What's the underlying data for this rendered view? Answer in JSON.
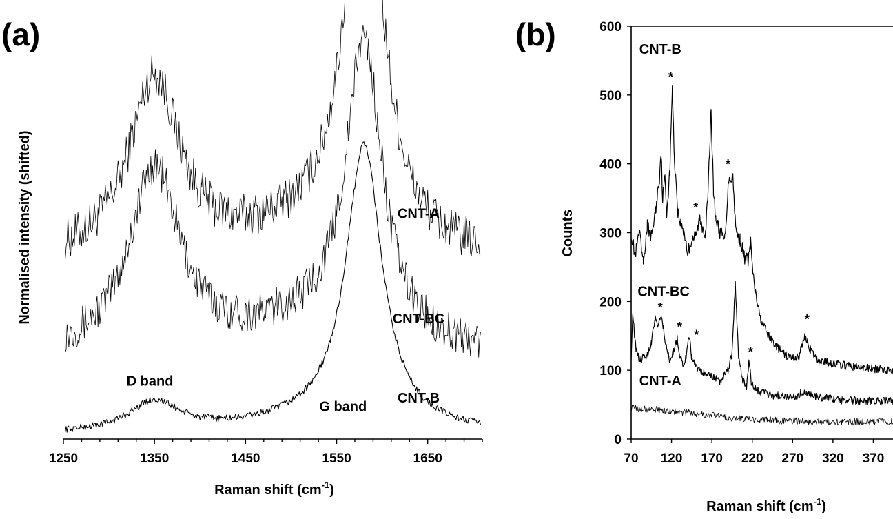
{
  "chart_data": [
    {
      "panel": "(a)",
      "type": "line",
      "xlabel": "Raman shift (cm",
      "xlabel_sup": "-1",
      "xlabel_tail": ")",
      "ylabel": "Normalised intensity (shifted)",
      "xlim": [
        1250,
        1710
      ],
      "ylim": [
        0,
        1.0
      ],
      "xticks": [
        1250,
        1350,
        1450,
        1550,
        1650
      ],
      "yticks_shown": false,
      "annotations": [
        {
          "text": "D band",
          "x": 1345,
          "y": 0.125
        },
        {
          "text": "G band",
          "x": 1557,
          "y": 0.065
        }
      ],
      "series": [
        {
          "name": "CNT-A",
          "label_x": 1640,
          "label_y": 0.515,
          "offset": 0.38,
          "peakD": 0.42,
          "peakG": 0.99,
          "base": 0.03,
          "noise": 0.05
        },
        {
          "name": "CNT-BC",
          "label_x": 1640,
          "label_y": 0.27,
          "offset": 0.16,
          "peakD": 0.43,
          "peakG": 0.7,
          "base": 0.03,
          "noise": 0.045
        },
        {
          "name": "CNT-B",
          "label_x": 1640,
          "label_y": 0.085,
          "offset": 0.0,
          "peakD": 0.07,
          "peakG": 0.66,
          "base": 0.01,
          "noise": 0.008
        }
      ]
    },
    {
      "panel": "(b)",
      "type": "line",
      "xlabel": "Raman shift (cm",
      "xlabel_sup": "-1",
      "xlabel_tail": ")",
      "ylabel": "Counts",
      "xlim": [
        70,
        420
      ],
      "ylim": [
        0,
        600
      ],
      "xticks": [
        70,
        120,
        170,
        220,
        270,
        320,
        370
      ],
      "yticks": [
        0,
        100,
        200,
        300,
        400,
        500,
        600
      ],
      "series": [
        {
          "name": "CNT-B",
          "label_x": 80,
          "label_y": 560,
          "points": [
            [
              70,
              300
            ],
            [
              75,
              265
            ],
            [
              80,
              300
            ],
            [
              85,
              255
            ],
            [
              90,
              310
            ],
            [
              95,
              295
            ],
            [
              100,
              330
            ],
            [
              105,
              380
            ],
            [
              107,
              420
            ],
            [
              109,
              350
            ],
            [
              112,
              380
            ],
            [
              114,
              330
            ],
            [
              118,
              390
            ],
            [
              121,
              515
            ],
            [
              123,
              420
            ],
            [
              128,
              330
            ],
            [
              132,
              310
            ],
            [
              136,
              300
            ],
            [
              140,
              270
            ],
            [
              145,
              290
            ],
            [
              150,
              295
            ],
            [
              155,
              320
            ],
            [
              158,
              310
            ],
            [
              162,
              300
            ],
            [
              165,
              350
            ],
            [
              169,
              480
            ],
            [
              172,
              360
            ],
            [
              175,
              320
            ],
            [
              180,
              300
            ],
            [
              186,
              290
            ],
            [
              191,
              380
            ],
            [
              196,
              380
            ],
            [
              200,
              300
            ],
            [
              205,
              290
            ],
            [
              210,
              265
            ],
            [
              215,
              260
            ],
            [
              218,
              285
            ],
            [
              222,
              225
            ],
            [
              230,
              175
            ],
            [
              240,
              150
            ],
            [
              250,
              135
            ],
            [
              260,
              122
            ],
            [
              270,
              118
            ],
            [
              278,
              120
            ],
            [
              285,
              150
            ],
            [
              292,
              130
            ],
            [
              300,
              115
            ],
            [
              320,
              110
            ],
            [
              340,
              106
            ],
            [
              370,
              102
            ],
            [
              400,
              100
            ],
            [
              420,
              100
            ]
          ]
        },
        {
          "name": "CNT-BC",
          "label_x": 78,
          "label_y": 208,
          "points": [
            [
              70,
              120
            ],
            [
              72,
              180
            ],
            [
              76,
              130
            ],
            [
              80,
              115
            ],
            [
              85,
              118
            ],
            [
              90,
              122
            ],
            [
              95,
              140
            ],
            [
              100,
              175
            ],
            [
              103,
              168
            ],
            [
              106,
              178
            ],
            [
              110,
              162
            ],
            [
              114,
              130
            ],
            [
              118,
              115
            ],
            [
              122,
              125
            ],
            [
              127,
              145
            ],
            [
              130,
              118
            ],
            [
              134,
              110
            ],
            [
              138,
              118
            ],
            [
              142,
              150
            ],
            [
              145,
              118
            ],
            [
              150,
              105
            ],
            [
              155,
              100
            ],
            [
              160,
              95
            ],
            [
              170,
              90
            ],
            [
              180,
              85
            ],
            [
              190,
              100
            ],
            [
              195,
              125
            ],
            [
              199,
              225
            ],
            [
              203,
              120
            ],
            [
              208,
              85
            ],
            [
              213,
              75
            ],
            [
              216,
              118
            ],
            [
              219,
              80
            ],
            [
              225,
              72
            ],
            [
              235,
              67
            ],
            [
              250,
              63
            ],
            [
              270,
              60
            ],
            [
              285,
              70
            ],
            [
              295,
              63
            ],
            [
              310,
              60
            ],
            [
              330,
              57
            ],
            [
              360,
              55
            ],
            [
              420,
              55
            ]
          ]
        },
        {
          "name": "CNT-A",
          "label_x": 80,
          "label_y": 78,
          "points": [
            [
              70,
              45
            ],
            [
              100,
              43
            ],
            [
              150,
              37
            ],
            [
              200,
              30
            ],
            [
              250,
              27
            ],
            [
              300,
              25
            ],
            [
              350,
              25
            ],
            [
              420,
              26
            ]
          ]
        }
      ],
      "stars": [
        {
          "x": 119,
          "y": 520
        },
        {
          "x": 150,
          "y": 330
        },
        {
          "x": 190,
          "y": 393
        },
        {
          "x": 106,
          "y": 185
        },
        {
          "x": 130,
          "y": 157
        },
        {
          "x": 151,
          "y": 145
        },
        {
          "x": 218,
          "y": 120
        },
        {
          "x": 288,
          "y": 168
        }
      ]
    }
  ]
}
